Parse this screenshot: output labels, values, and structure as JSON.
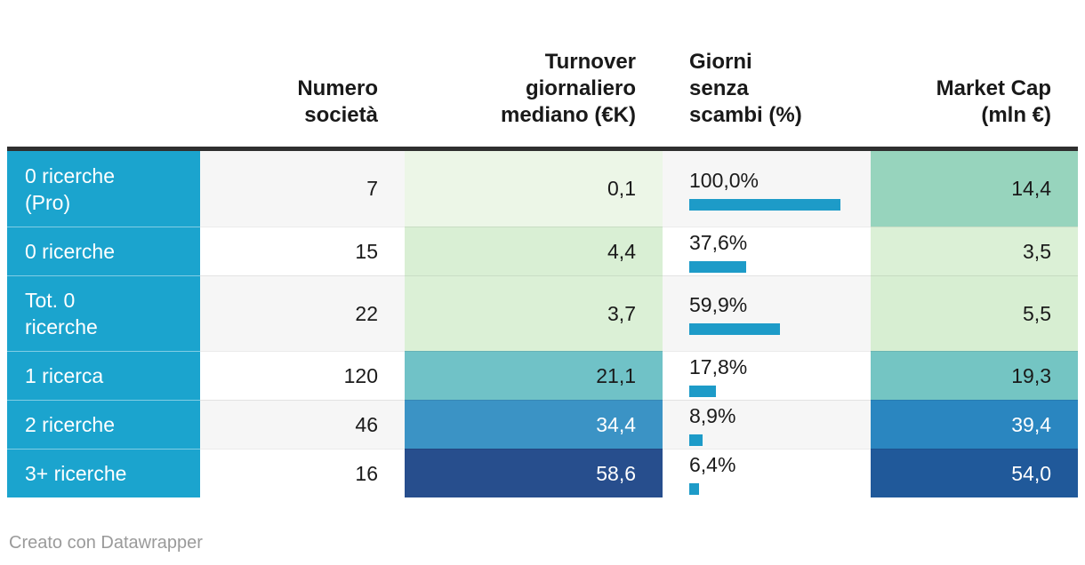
{
  "colors": {
    "accent": "#1ba4ce",
    "bar": "#1d9bc8",
    "stripe": "#f6f6f6",
    "header_rule": "#2f2f2f",
    "text_dark": "#1a1a1a",
    "footer_gray": "#9a9a9a"
  },
  "footer": {
    "attribution": "Creato con Datawrapper"
  },
  "chart_data": {
    "type": "table",
    "title": "",
    "columns": [
      "",
      "Numero società",
      "Turnover giornaliero mediano (€K)",
      "Giorni senza scambi (%)",
      "Market Cap (mln €)"
    ],
    "rows": [
      {
        "label": "0 ricerche (Pro)",
        "numero_societa": 7,
        "turnover_mediano_k": 0.1,
        "giorni_senza_scambi_pct": 100.0,
        "market_cap_mln": 14.4
      },
      {
        "label": "0 ricerche",
        "numero_societa": 15,
        "turnover_mediano_k": 4.4,
        "giorni_senza_scambi_pct": 37.6,
        "market_cap_mln": 3.5
      },
      {
        "label": "Tot. 0 ricerche",
        "numero_societa": 22,
        "turnover_mediano_k": 3.7,
        "giorni_senza_scambi_pct": 59.9,
        "market_cap_mln": 5.5
      },
      {
        "label": "1 ricerca",
        "numero_societa": 120,
        "turnover_mediano_k": 21.1,
        "giorni_senza_scambi_pct": 17.8,
        "market_cap_mln": 19.3
      },
      {
        "label": "2 ricerche",
        "numero_societa": 46,
        "turnover_mediano_k": 34.4,
        "giorni_senza_scambi_pct": 8.9,
        "market_cap_mln": 39.4
      },
      {
        "label": "3+ ricerche",
        "numero_societa": 16,
        "turnover_mediano_k": 58.6,
        "giorni_senza_scambi_pct": 6.4,
        "market_cap_mln": 54.0
      }
    ],
    "notes": "heatmap coloring on Turnover and Market Cap columns; bar chart in Giorni senza scambi column"
  },
  "header": {
    "rowlabel": {
      "lines": []
    },
    "numero": {
      "lines": [
        "Numero",
        "società"
      ]
    },
    "turnover": {
      "lines": [
        "Turnover",
        "giornaliero",
        "mediano (€K)"
      ]
    },
    "giorni": {
      "lines": [
        "Giorni",
        "senza",
        "scambi (%)"
      ]
    },
    "market": {
      "lines": [
        "Market Cap",
        "(mln €)"
      ]
    }
  },
  "rows": [
    {
      "label_lines": [
        "0 ricerche",
        "(Pro)"
      ],
      "numero": "7",
      "turnover": "0,1",
      "giorni_label": "100,0%",
      "giorni_pct": 100.0,
      "market": "14,4",
      "turnover_bg": "#ecf6e7",
      "turnover_color": "#1a1a1a",
      "market_bg": "#97d4bd",
      "market_color": "#1a1a1a"
    },
    {
      "label_lines": [
        "0 ricerche"
      ],
      "numero": "15",
      "turnover": "4,4",
      "giorni_label": "37,6%",
      "giorni_pct": 37.6,
      "market": "3,5",
      "turnover_bg": "#d9efd4",
      "turnover_color": "#1a1a1a",
      "market_bg": "#dbf0d6",
      "market_color": "#1a1a1a"
    },
    {
      "label_lines": [
        "Tot. 0",
        "ricerche"
      ],
      "numero": "22",
      "turnover": "3,7",
      "giorni_label": "59,9%",
      "giorni_pct": 59.9,
      "market": "5,5",
      "turnover_bg": "#dbf0d6",
      "turnover_color": "#1a1a1a",
      "market_bg": "#d7eed2",
      "market_color": "#1a1a1a"
    },
    {
      "label_lines": [
        "1 ricerca"
      ],
      "numero": "120",
      "turnover": "21,1",
      "giorni_label": "17,8%",
      "giorni_pct": 17.8,
      "market": "19,3",
      "turnover_bg": "#70c2c7",
      "turnover_color": "#1a1a1a",
      "market_bg": "#74c5c3",
      "market_color": "#1a1a1a"
    },
    {
      "label_lines": [
        "2 ricerche"
      ],
      "numero": "46",
      "turnover": "34,4",
      "giorni_label": "8,9%",
      "giorni_pct": 8.9,
      "market": "39,4",
      "turnover_bg": "#3b93c5",
      "turnover_color": "#ffffff",
      "market_bg": "#2a86c0",
      "market_color": "#ffffff"
    },
    {
      "label_lines": [
        "3+ ricerche"
      ],
      "numero": "16",
      "turnover": "58,6",
      "giorni_label": "6,4%",
      "giorni_pct": 6.4,
      "market": "54,0",
      "turnover_bg": "#274e8d",
      "turnover_color": "#ffffff",
      "market_bg": "#20599a",
      "market_color": "#ffffff"
    }
  ]
}
